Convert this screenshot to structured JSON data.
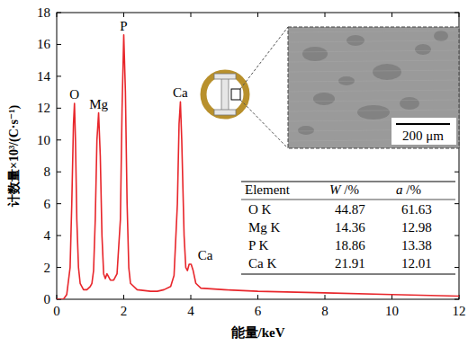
{
  "chart_data": {
    "type": "line",
    "x_label": "能量/keV",
    "y_label": "计数量×10³/(C·s⁻¹)",
    "color": "#e8262b",
    "xlim": [
      0,
      12
    ],
    "ylim": [
      0,
      18
    ],
    "xticks": [
      0,
      2,
      4,
      6,
      8,
      10,
      12
    ],
    "yticks": [
      0,
      2,
      4,
      6,
      8,
      10,
      12,
      14,
      16,
      18
    ],
    "x": [
      0.0,
      0.2,
      0.3,
      0.4,
      0.45,
      0.5,
      0.53,
      0.56,
      0.6,
      0.65,
      0.7,
      0.8,
      0.9,
      1.0,
      1.05,
      1.1,
      1.15,
      1.2,
      1.25,
      1.3,
      1.35,
      1.4,
      1.45,
      1.5,
      1.55,
      1.6,
      1.7,
      1.8,
      1.9,
      1.95,
      2.0,
      2.05,
      2.1,
      2.15,
      2.2,
      2.4,
      2.8,
      3.0,
      3.2,
      3.4,
      3.5,
      3.6,
      3.65,
      3.69,
      3.73,
      3.8,
      3.85,
      3.9,
      3.95,
      4.01,
      4.07,
      4.15,
      4.3,
      5.0,
      6.0,
      8.0,
      10.0,
      12.0
    ],
    "values": [
      0,
      0,
      0.3,
      2,
      6,
      11,
      12.3,
      10,
      5,
      2,
      1,
      0.6,
      0.6,
      0.8,
      1.0,
      1.8,
      5,
      10,
      11.7,
      9,
      4,
      1.6,
      1.3,
      1.6,
      1.4,
      1.2,
      1.2,
      1.6,
      5,
      12,
      16.6,
      13,
      6,
      2,
      1,
      0.6,
      0.5,
      0.5,
      0.6,
      0.8,
      1.5,
      6,
      11,
      12.4,
      10,
      4,
      2,
      1.8,
      2.2,
      2.2,
      1.8,
      1,
      0.7,
      0.6,
      0.5,
      0.4,
      0.3,
      0.2
    ],
    "annotations": [
      {
        "text": "O",
        "x": 0.53,
        "y": 12.3
      },
      {
        "text": "Mg",
        "x": 1.25,
        "y": 11.7
      },
      {
        "text": "P",
        "x": 2.0,
        "y": 16.6
      },
      {
        "text": "Ca",
        "x": 3.69,
        "y": 12.4
      },
      {
        "text": "Ca",
        "x": 4.1,
        "y": 2.2
      }
    ]
  },
  "inset": {
    "scale_bar": "200 μm"
  },
  "table": {
    "columns": [
      "Element",
      "W /%",
      "a /%"
    ],
    "rows": [
      [
        "O K",
        44.87,
        61.63
      ],
      [
        "Mg K",
        14.36,
        12.98
      ],
      [
        "P K",
        18.86,
        13.38
      ],
      [
        "Ca K",
        21.91,
        12.01
      ]
    ]
  }
}
